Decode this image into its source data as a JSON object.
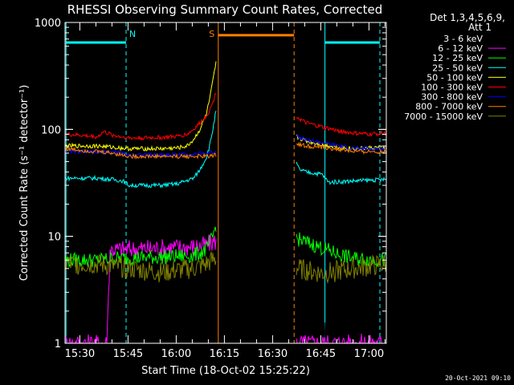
{
  "chart_data": {
    "type": "line",
    "title": "RHESSI Observing Summary Count Rates, Corrected",
    "xlabel": "Start Time (18-Oct-02 15:25:22)",
    "ylabel": "Corrected Count Rate (s⁻¹ detector⁻¹)",
    "yscale": "log",
    "ylim": [
      1,
      1000
    ],
    "xlim_minutes": [
      0,
      100
    ],
    "x_ticks": [
      {
        "label": "15:30",
        "min": 4.6
      },
      {
        "label": "15:45",
        "min": 19.6
      },
      {
        "label": "16:00",
        "min": 34.6
      },
      {
        "label": "16:15",
        "min": 49.6
      },
      {
        "label": "16:30",
        "min": 64.6
      },
      {
        "label": "16:45",
        "min": 79.6
      },
      {
        "label": "17:00",
        "min": 94.6
      }
    ],
    "y_ticks": [
      {
        "label": "1",
        "value": 1
      },
      {
        "label": "10",
        "value": 10
      },
      {
        "label": "100",
        "value": 100
      },
      {
        "label": "1000",
        "value": 1000
      }
    ],
    "legend": {
      "header": [
        "Det 1,3,4,5,6,9,",
        "Att 1"
      ],
      "position": "right"
    },
    "gaps_minutes": [
      [
        47.5,
        71.5
      ]
    ],
    "markers": [
      {
        "label": "N",
        "color": "#00ffff",
        "min": 19.0,
        "style": "dashed"
      },
      {
        "label": "S",
        "color": "#ff8000",
        "min": 47.7,
        "style": "solid"
      }
    ],
    "vertical_lines": [
      {
        "color": "#00ffff",
        "min": 0.3,
        "style": "solid"
      },
      {
        "color": "#00ffff",
        "min": 19.0,
        "style": "dashed"
      },
      {
        "color": "#00ffff",
        "min": 80.9,
        "style": "solid"
      },
      {
        "color": "#00ffff",
        "min": 98.0,
        "style": "dashed"
      },
      {
        "color": "#ff8000",
        "min": 47.7,
        "style": "solid"
      },
      {
        "color": "#ff8000",
        "min": 71.3,
        "style": "dashed"
      }
    ],
    "flag_bars": [
      {
        "color": "#00ffff",
        "y": 650,
        "from_min": 0.3,
        "to_min": 19.0
      },
      {
        "color": "#00ffff",
        "y": 650,
        "from_min": 80.9,
        "to_min": 98.0
      },
      {
        "color": "#ff8000",
        "y": 760,
        "from_min": 47.7,
        "to_min": 71.3
      }
    ],
    "series": [
      {
        "name": "3 - 6 keV",
        "color": "#000000",
        "segments": [
          {
            "x": [
              0,
              17,
              30,
              40,
              44,
              46,
              47
            ],
            "y": [
              1,
              1,
              1,
              1,
              1.3,
              2.2,
              4.0
            ]
          },
          {
            "x": [
              72,
              80,
              90,
              100
            ],
            "y": [
              1,
              1,
              1,
              1
            ]
          }
        ]
      },
      {
        "name": "6 - 12 keV",
        "color": "#ff00ff",
        "segments": [
          {
            "x": [
              0,
              13,
              14,
              30,
              40,
              44,
              46,
              47
            ],
            "y": [
              1,
              1,
              7.5,
              7.8,
              8.0,
              8.3,
              8.8,
              9.0
            ]
          },
          {
            "x": [
              72,
              80,
              90,
              100
            ],
            "y": [
              1,
              1,
              1,
              1
            ]
          }
        ]
      },
      {
        "name": "12 - 25 keV",
        "color": "#00ff00",
        "segments": [
          {
            "x": [
              0,
              10,
              15,
              20,
              30,
              40,
              44,
              46,
              47
            ],
            "y": [
              6,
              6,
              6.2,
              6.3,
              6.4,
              6.6,
              7.5,
              10,
              13
            ]
          },
          {
            "x": [
              72,
              75,
              80,
              85,
              90,
              100
            ],
            "y": [
              9.5,
              8.8,
              7.8,
              6.8,
              6.2,
              6.0
            ]
          }
        ]
      },
      {
        "name": "25 - 50 keV",
        "color": "#00ffff",
        "segments": [
          {
            "x": [
              0,
              10,
              15,
              18,
              20,
              30,
              35,
              40,
              42,
              44,
              45,
              46,
              47
            ],
            "y": [
              35,
              35,
              34,
              33,
              30,
              30,
              31,
              35,
              42,
              55,
              70,
              100,
              150
            ]
          },
          {
            "x": [
              72,
              73,
              75,
              80,
              82,
              90,
              100
            ],
            "y": [
              48,
              42,
              40,
              38,
              32,
              33,
              34
            ]
          }
        ]
      },
      {
        "name": "50 - 100 keV",
        "color": "#ffff00",
        "segments": [
          {
            "x": [
              0,
              10,
              20,
              30,
              35,
              38,
              40,
              42,
              44,
              45,
              46,
              47
            ],
            "y": [
              70,
              70,
              66,
              66,
              67,
              70,
              80,
              100,
              140,
              190,
              280,
              420
            ]
          },
          {
            "x": [
              72,
              75,
              80,
              85,
              90,
              100
            ],
            "y": [
              85,
              78,
              72,
              68,
              66,
              68
            ]
          }
        ]
      },
      {
        "name": "100 - 300 keV",
        "color": "#ff0000",
        "segments": [
          {
            "x": [
              0,
              5,
              10,
              12,
              15,
              20,
              30,
              35,
              38,
              40,
              42,
              44,
              45,
              46,
              47
            ],
            "y": [
              90,
              88,
              85,
              95,
              88,
              83,
              84,
              86,
              90,
              100,
              115,
              135,
              150,
              180,
              220
            ]
          },
          {
            "x": [
              72,
              73,
              75,
              80,
              85,
              90,
              95,
              100
            ],
            "y": [
              135,
              125,
              115,
              105,
              97,
              92,
              90,
              93
            ]
          }
        ]
      },
      {
        "name": "300 - 800 keV",
        "color": "#0000ff",
        "segments": [
          {
            "x": [
              0,
              5,
              10,
              15,
              20,
              30,
              35,
              40,
              44,
              46,
              47
            ],
            "y": [
              62,
              62,
              61,
              62,
              58,
              58,
              58,
              59,
              60,
              61,
              62
            ]
          },
          {
            "x": [
              72,
              73,
              75,
              80,
              85,
              90,
              100
            ],
            "y": [
              90,
              85,
              80,
              75,
              70,
              66,
              66
            ]
          }
        ]
      },
      {
        "name": "800 - 7000 keV",
        "color": "#ff8000",
        "segments": [
          {
            "x": [
              0,
              5,
              10,
              15,
              20,
              30,
              35,
              40,
              44,
              46,
              47
            ],
            "y": [
              66,
              64,
              62,
              60,
              56,
              56,
              56,
              56,
              56,
              57,
              58
            ]
          },
          {
            "x": [
              72,
              73,
              75,
              80,
              85,
              90,
              100
            ],
            "y": [
              75,
              72,
              70,
              68,
              65,
              62,
              62
            ]
          }
        ]
      },
      {
        "name": "7000 - 15000 keV",
        "color": "#808000",
        "segments": [
          {
            "x": [
              0,
              10,
              20,
              30,
              40,
              44,
              46,
              47
            ],
            "y": [
              5.5,
              5.5,
              5,
              4.6,
              5,
              5.5,
              6,
              6
            ]
          },
          {
            "x": [
              72,
              80,
              90,
              100
            ],
            "y": [
              5,
              4.5,
              5,
              5.5
            ]
          }
        ]
      }
    ],
    "footer_timestamp": "20-Oct-2021 09:10"
  }
}
